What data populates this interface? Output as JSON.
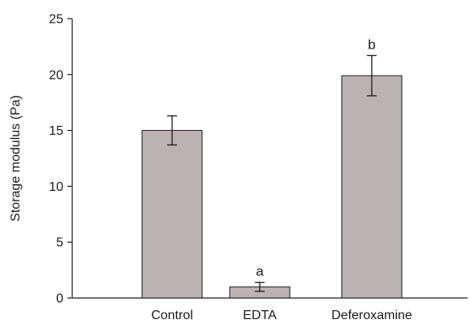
{
  "chart_data": {
    "type": "bar",
    "categories": [
      "Control",
      "EDTA",
      "Deferoxamine"
    ],
    "values": [
      15.0,
      1.0,
      19.9
    ],
    "errors": [
      1.3,
      0.4,
      1.8
    ],
    "annotations": [
      "",
      "a",
      "b"
    ],
    "ylabel": "Storage modulus (Pa)",
    "xlabel": "",
    "ylim": [
      0,
      25
    ],
    "yticks": [
      0,
      5,
      10,
      15,
      20,
      25
    ],
    "grid": false,
    "colors": {
      "bar": "#bcb2b1",
      "axis": "#1a1a1a"
    }
  }
}
